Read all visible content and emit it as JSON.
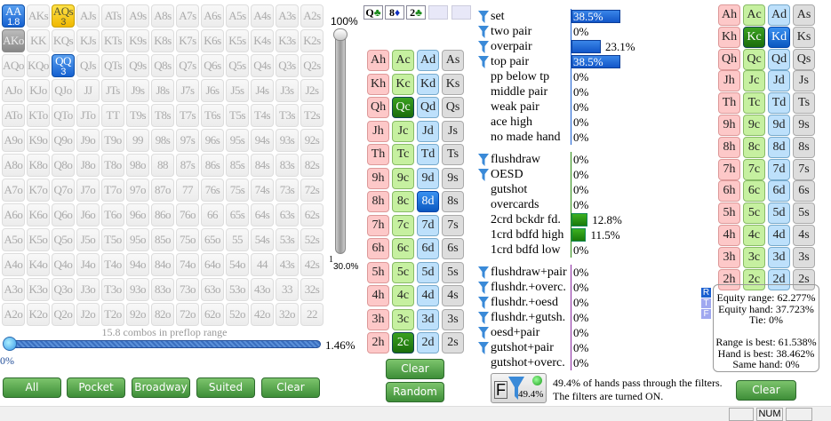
{
  "matrix": {
    "rows": [
      [
        "AA",
        "AKs",
        "AQs",
        "AJs",
        "ATs",
        "A9s",
        "A8s",
        "A7s",
        "A6s",
        "A5s",
        "A4s",
        "A3s",
        "A2s"
      ],
      [
        "AKo",
        "KK",
        "KQs",
        "KJs",
        "KTs",
        "K9s",
        "K8s",
        "K7s",
        "K6s",
        "K5s",
        "K4s",
        "K3s",
        "K2s"
      ],
      [
        "AQo",
        "KQo",
        "QQ",
        "QJs",
        "QTs",
        "Q9s",
        "Q8s",
        "Q7s",
        "Q6s",
        "Q5s",
        "Q4s",
        "Q3s",
        "Q2s"
      ],
      [
        "AJo",
        "KJo",
        "QJo",
        "JJ",
        "JTs",
        "J9s",
        "J8s",
        "J7s",
        "J6s",
        "J5s",
        "J4s",
        "J3s",
        "J2s"
      ],
      [
        "ATo",
        "KTo",
        "QTo",
        "JTo",
        "TT",
        "T9s",
        "T8s",
        "T7s",
        "T6s",
        "T5s",
        "T4s",
        "T3s",
        "T2s"
      ],
      [
        "A9o",
        "K9o",
        "Q9o",
        "J9o",
        "T9o",
        "99",
        "98s",
        "97s",
        "96s",
        "95s",
        "94s",
        "93s",
        "92s"
      ],
      [
        "A8o",
        "K8o",
        "Q8o",
        "J8o",
        "T8o",
        "98o",
        "88",
        "87s",
        "86s",
        "85s",
        "84s",
        "83s",
        "82s"
      ],
      [
        "A7o",
        "K7o",
        "Q7o",
        "J7o",
        "T7o",
        "97o",
        "87o",
        "77",
        "76s",
        "75s",
        "74s",
        "73s",
        "72s"
      ],
      [
        "A6o",
        "K6o",
        "Q6o",
        "J6o",
        "T6o",
        "96o",
        "86o",
        "76o",
        "66",
        "65s",
        "64s",
        "63s",
        "62s"
      ],
      [
        "A5o",
        "K5o",
        "Q5o",
        "J5o",
        "T5o",
        "95o",
        "85o",
        "75o",
        "65o",
        "55",
        "54s",
        "53s",
        "52s"
      ],
      [
        "A4o",
        "K4o",
        "Q4o",
        "J4o",
        "T4o",
        "94o",
        "84o",
        "74o",
        "64o",
        "54o",
        "44",
        "43s",
        "42s"
      ],
      [
        "A3o",
        "K3o",
        "Q3o",
        "J3o",
        "T3o",
        "93o",
        "83o",
        "73o",
        "63o",
        "53o",
        "43o",
        "33",
        "32s"
      ],
      [
        "A2o",
        "K2o",
        "Q2o",
        "J2o",
        "T2o",
        "92o",
        "82o",
        "72o",
        "62o",
        "52o",
        "42o",
        "32o",
        "22"
      ]
    ],
    "highlights": {
      "AA": {
        "style": "blue",
        "count": "1.8"
      },
      "AQs": {
        "style": "yellow",
        "count": "3"
      },
      "QQ": {
        "style": "blue",
        "count": "3"
      },
      "AKo": {
        "style": "dark"
      }
    },
    "combos_text": "15.8 combos in preflop range"
  },
  "vslider": {
    "top_label": "100%",
    "bottom_label": "1",
    "bottom_value": "30.0%"
  },
  "hslider": {
    "right_value": "1.46%",
    "left_value": "0%"
  },
  "range_buttons": [
    "All",
    "Pocket",
    "Broadway",
    "Suited",
    "Clear"
  ],
  "board": {
    "cards": [
      {
        "rank": "Q",
        "suit": "♣",
        "color": "#1a8a1a"
      },
      {
        "rank": "8",
        "suit": "♦",
        "color": "#1030c0"
      },
      {
        "rank": "2",
        "suit": "♣",
        "color": "#1a8a1a"
      }
    ],
    "empty_slots": 2
  },
  "ranks": [
    "A",
    "K",
    "Q",
    "J",
    "T",
    "9",
    "8",
    "7",
    "6",
    "5",
    "4",
    "3",
    "2"
  ],
  "board_selected": [
    "Qc",
    "8d",
    "2c"
  ],
  "hand_selected": [
    "Kc",
    "Kd"
  ],
  "middle_buttons": {
    "clear": "Clear",
    "random": "Random"
  },
  "stats": [
    {
      "label": "set",
      "value": "38.5%",
      "pct": 38.5,
      "filter": true,
      "group": 1
    },
    {
      "label": "two pair",
      "value": "0%",
      "pct": 0,
      "filter": true,
      "group": 1
    },
    {
      "label": "overpair",
      "value": "23.1%",
      "pct": 23.1,
      "filter": true,
      "group": 1
    },
    {
      "label": "top pair",
      "value": "38.5%",
      "pct": 38.5,
      "filter": true,
      "group": 1
    },
    {
      "label": "pp below tp",
      "value": "0%",
      "pct": 0,
      "filter": false,
      "group": 1
    },
    {
      "label": "middle pair",
      "value": "0%",
      "pct": 0,
      "filter": false,
      "group": 1
    },
    {
      "label": "weak pair",
      "value": "0%",
      "pct": 0,
      "filter": false,
      "group": 1
    },
    {
      "label": "ace high",
      "value": "0%",
      "pct": 0,
      "filter": false,
      "group": 1
    },
    {
      "label": "no made hand",
      "value": "0%",
      "pct": 0,
      "filter": false,
      "group": 1
    },
    {
      "label": "flushdraw",
      "value": "0%",
      "pct": 0,
      "filter": true,
      "group": 2
    },
    {
      "label": "OESD",
      "value": "0%",
      "pct": 0,
      "filter": true,
      "group": 2
    },
    {
      "label": "gutshot",
      "value": "0%",
      "pct": 0,
      "filter": false,
      "group": 2
    },
    {
      "label": "overcards",
      "value": "0%",
      "pct": 0,
      "filter": false,
      "group": 2
    },
    {
      "label": "2crd bckdr fd.",
      "value": "12.8%",
      "pct": 12.8,
      "filter": false,
      "group": 2
    },
    {
      "label": "1crd bdfd high",
      "value": "11.5%",
      "pct": 11.5,
      "filter": false,
      "group": 2
    },
    {
      "label": "1crd bdfd low",
      "value": "0%",
      "pct": 0,
      "filter": false,
      "group": 2
    },
    {
      "label": "flushdraw+pair",
      "value": "0%",
      "pct": 0,
      "filter": true,
      "group": 3
    },
    {
      "label": "flushdr.+overc.",
      "value": "0%",
      "pct": 0,
      "filter": true,
      "group": 3
    },
    {
      "label": "flushdr.+oesd",
      "value": "0%",
      "pct": 0,
      "filter": true,
      "group": 3
    },
    {
      "label": "flushdr.+gutsh.",
      "value": "0%",
      "pct": 0,
      "filter": true,
      "group": 3
    },
    {
      "label": "oesd+pair",
      "value": "0%",
      "pct": 0,
      "filter": true,
      "group": 3
    },
    {
      "label": "gutshot+pair",
      "value": "0%",
      "pct": 0,
      "filter": true,
      "group": 3
    },
    {
      "label": "gutshot+overc.",
      "value": "0%",
      "pct": 0,
      "filter": false,
      "group": 3
    }
  ],
  "colors": {
    "group1": "#1a5fd0",
    "group2": "#2a8a10",
    "group3": "#8a2aa0"
  },
  "filter": {
    "letter": "F",
    "value": "49.4%",
    "line1": "49.4% of hands pass through the filters.",
    "line2": "The filters are turned ON."
  },
  "equity": {
    "tags": [
      "R",
      "T",
      "F"
    ],
    "lines": [
      "Equity range: 62.277%",
      "Equity hand: 37.723%",
      "Tie: 0%",
      "",
      "Range is best: 61.538%",
      "Hand is best: 38.462%",
      "Same hand: 0%"
    ]
  },
  "right_clear": "Clear",
  "status": {
    "num": "NUM"
  }
}
